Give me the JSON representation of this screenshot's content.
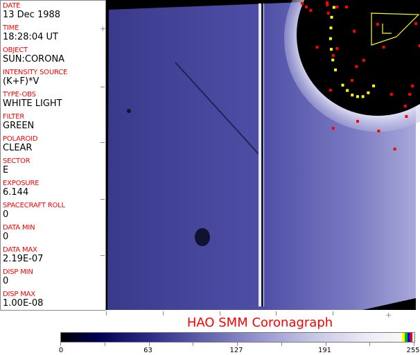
{
  "header_fields": [
    {
      "label": "DATE",
      "value": "13 Dec 1988"
    },
    {
      "label": "TIME",
      "value": "18:28:04 UT"
    },
    {
      "label": "OBJECT",
      "value": "SUN:CORONA"
    },
    {
      "label": "INTENSITY SOURCE",
      "value": "(K+F)*V"
    },
    {
      "label": "TYPE-OBS",
      "value": "WHITE LIGHT"
    },
    {
      "label": "FILTER",
      "value": "GREEN"
    },
    {
      "label": "POLAROID",
      "value": "CLEAR"
    },
    {
      "label": "SECTOR",
      "value": "E"
    },
    {
      "label": "EXPOSURE",
      "value": "6.144"
    },
    {
      "label": "SPACECRAFT ROLL",
      "value": "0"
    },
    {
      "label": "DATA MIN",
      "value": "0"
    },
    {
      "label": "DATA MAX",
      "value": "2.19E-07"
    },
    {
      "label": "DISP MIN",
      "value": "0"
    },
    {
      "label": "DISP MAX",
      "value": "1.00E-08"
    }
  ],
  "title": "HAO  SMM Coronagraph",
  "colorbar": {
    "tick_labels": [
      "0",
      "63",
      "127",
      "191",
      "255"
    ],
    "min": 0,
    "max": 255,
    "colors": {
      "low": "#000000",
      "mid": "#6666b0",
      "high": "#f8f8f8",
      "overlay": [
        "#ffff00",
        "#00c000",
        "#0000ff",
        "#ff0000"
      ]
    }
  },
  "colors": {
    "label": "#ff0000",
    "marker_red": "#ff0000",
    "marker_yellow": "#ffff00",
    "image_blue": "#4a4aa0"
  }
}
